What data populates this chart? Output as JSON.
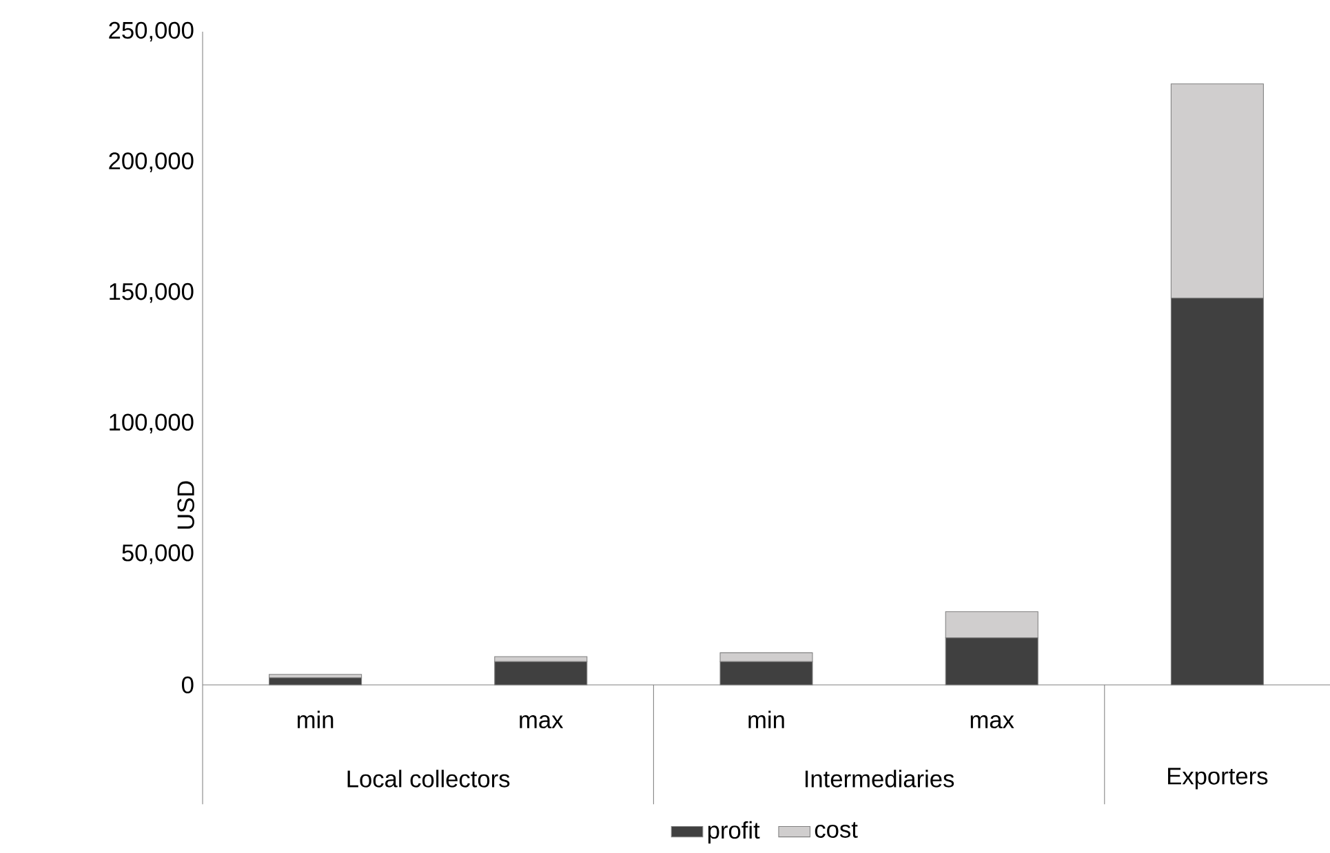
{
  "chart_data": {
    "type": "bar",
    "stacked": true,
    "ylabel": "USD",
    "categories": [
      "min",
      "max",
      "min",
      "max",
      null
    ],
    "series": [
      {
        "name": "profit",
        "color": "#404040",
        "values": [
          2700,
          8900,
          8900,
          18000,
          148000
        ]
      },
      {
        "name": "cost",
        "color": "#d0cece",
        "values": [
          1300,
          1900,
          3400,
          10000,
          82000
        ]
      }
    ],
    "ylim": [
      0,
      250000
    ],
    "yticks": [
      0,
      {
        "value": 50000,
        "label": "50,000"
      },
      {
        "value": 100000,
        "label": "100,000"
      },
      {
        "value": 150000,
        "label": "150,000"
      },
      {
        "value": 200000,
        "label": "200,000"
      },
      {
        "value": 250000,
        "label": "250,000"
      }
    ],
    "annotations": [
      "Local collectors",
      "Intermediaries",
      "Exporters"
    ],
    "legend": "bottom",
    "grid": false
  }
}
